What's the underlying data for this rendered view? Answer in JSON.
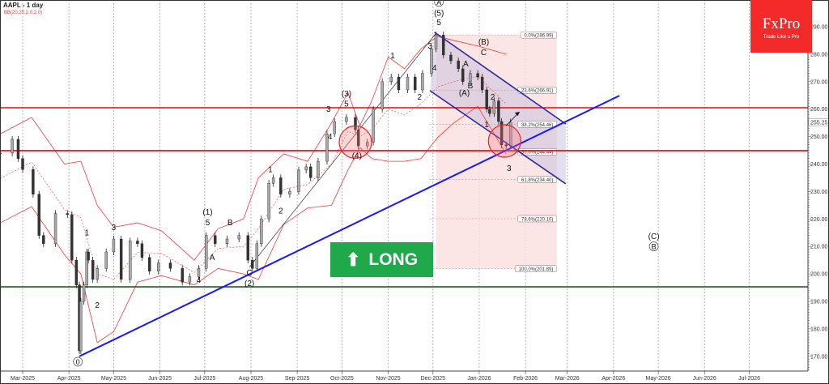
{
  "header": {
    "symbol_title": "AAPL - 1 day",
    "indicator": "BB(20,20,2.0,2.0)"
  },
  "logo": {
    "brand": "FxPro",
    "tagline": "Trade Like a Pro"
  },
  "signal": {
    "label": "LONG",
    "icon": "arrow-up-icon",
    "color": "#20a94a"
  },
  "chart_data": {
    "type": "candlestick",
    "title": "AAPL - 1 day",
    "y_ticks": [
      "290.00",
      "280.00",
      "270.00",
      "260.00",
      "250.00",
      "240.00",
      "230.00",
      "220.00",
      "210.00",
      "200.00",
      "190.00",
      "180.00",
      "170.00"
    ],
    "y_tick_values": [
      290,
      280,
      270,
      260,
      250,
      240,
      230,
      220,
      210,
      200,
      190,
      180,
      170
    ],
    "ylim": [
      164.6,
      299.7
    ],
    "x_ticks": [
      {
        "label": "Mar-2025",
        "date": "2025-03-01"
      },
      {
        "label": "Apr-2025",
        "date": "2025-04-01"
      },
      {
        "label": "May-2025",
        "date": "2025-05-01"
      },
      {
        "label": "Jun-2025",
        "date": "2025-06-01"
      },
      {
        "label": "Jul-2025",
        "date": "2025-07-01"
      },
      {
        "label": "Aug-2025",
        "date": "2025-08-01"
      },
      {
        "label": "Sep-2025",
        "date": "2025-09-01"
      },
      {
        "label": "Oct-2025",
        "date": "2025-10-01"
      },
      {
        "label": "Nov-2025",
        "date": "2025-11-01"
      },
      {
        "label": "Dec-2025",
        "date": "2025-12-01"
      },
      {
        "label": "Jan-2026",
        "date": "2026-01-01"
      },
      {
        "label": "Feb-2026",
        "date": "2026-02-01"
      },
      {
        "label": "Mar-2026",
        "date": "2026-03-01"
      },
      {
        "label": "Apr-2026",
        "date": "2026-04-01"
      },
      {
        "label": "May-2026",
        "date": "2026-05-01"
      },
      {
        "label": "Jun-2026",
        "date": "2026-06-01"
      },
      {
        "label": "Jul-2026",
        "date": "2026-07-01"
      }
    ],
    "last_price": "255.25",
    "closes": [
      [
        "2025-02-14",
        244
      ],
      [
        "2025-02-22",
        249
      ],
      [
        "2025-02-26",
        242
      ],
      [
        "2025-03-01",
        238
      ],
      [
        "2025-03-08",
        229
      ],
      [
        "2025-03-12",
        214
      ],
      [
        "2025-03-15",
        211
      ],
      [
        "2025-03-23",
        222
      ],
      [
        "2025-03-31",
        221.6
      ],
      [
        "2025-04-03",
        205
      ],
      [
        "2025-04-06",
        196
      ],
      [
        "2025-04-08",
        172
      ],
      [
        "2025-04-09",
        190
      ],
      [
        "2025-04-11",
        196
      ],
      [
        "2025-04-13",
        208
      ],
      [
        "2025-04-14",
        205
      ],
      [
        "2025-04-17",
        198
      ],
      [
        "2025-04-20",
        202
      ],
      [
        "2025-04-26",
        208
      ],
      [
        "2025-05-01",
        212.7
      ],
      [
        "2025-05-06",
        198
      ],
      [
        "2025-05-12",
        212
      ],
      [
        "2025-05-17",
        211
      ],
      [
        "2025-05-20",
        206
      ],
      [
        "2025-05-25",
        201
      ],
      [
        "2025-05-31",
        204
      ],
      [
        "2025-06-08",
        202
      ],
      [
        "2025-06-16",
        197
      ],
      [
        "2025-06-21",
        199
      ],
      [
        "2025-06-27",
        202
      ],
      [
        "2025-07-02",
        214
      ],
      [
        "2025-07-08",
        211
      ],
      [
        "2025-07-16",
        212.7
      ],
      [
        "2025-07-24",
        214
      ],
      [
        "2025-07-30",
        205
      ],
      [
        "2025-08-02",
        202
      ],
      [
        "2025-08-05",
        211
      ],
      [
        "2025-08-08",
        220
      ],
      [
        "2025-08-13",
        233
      ],
      [
        "2025-08-16",
        235
      ],
      [
        "2025-08-21",
        229
      ],
      [
        "2025-08-27",
        230
      ],
      [
        "2025-09-02",
        237.8
      ],
      [
        "2025-09-07",
        239
      ],
      [
        "2025-09-10",
        235
      ],
      [
        "2025-09-15",
        241
      ],
      [
        "2025-09-21",
        251
      ],
      [
        "2025-09-26",
        255.5
      ],
      [
        "2025-10-04",
        257
      ],
      [
        "2025-10-10",
        252.5
      ],
      [
        "2025-10-12",
        246.6
      ],
      [
        "2025-10-18",
        248
      ],
      [
        "2025-10-22",
        260
      ],
      [
        "2025-10-28",
        270
      ],
      [
        "2025-11-03",
        271.7
      ],
      [
        "2025-11-08",
        267
      ],
      [
        "2025-11-14",
        271.7
      ],
      [
        "2025-11-19",
        267
      ],
      [
        "2025-11-24",
        273
      ],
      [
        "2025-11-30",
        282
      ],
      [
        "2025-12-03",
        287
      ],
      [
        "2025-12-08",
        279.7
      ],
      [
        "2025-12-13",
        277.6
      ],
      [
        "2025-12-18",
        274.7
      ],
      [
        "2025-12-21",
        270
      ],
      [
        "2025-12-26",
        273
      ],
      [
        "2025-12-31",
        271.7
      ],
      [
        "2026-01-03",
        267
      ],
      [
        "2026-01-06",
        260
      ],
      [
        "2026-01-08",
        258.4
      ],
      [
        "2026-01-11",
        263
      ],
      [
        "2026-01-14",
        255.5
      ],
      [
        "2026-01-16",
        247
      ],
      [
        "2026-01-19",
        246.6
      ],
      [
        "2026-01-22",
        255.3
      ]
    ],
    "bollinger": {
      "dates": [
        "2025-02-14",
        "2025-03-07",
        "2025-03-29",
        "2025-04-09",
        "2025-04-20",
        "2025-05-01",
        "2025-05-17",
        "2025-06-02",
        "2025-06-24",
        "2025-07-10",
        "2025-07-27",
        "2025-08-06",
        "2025-08-23",
        "2025-09-08",
        "2025-09-24",
        "2025-10-05",
        "2025-10-13",
        "2025-10-21",
        "2025-11-01",
        "2025-11-12",
        "2025-11-23",
        "2025-12-04",
        "2025-12-15",
        "2025-12-31",
        "2026-01-19"
      ],
      "upper": [
        251,
        257,
        240,
        241,
        225,
        217,
        218.6,
        215.7,
        205,
        216.5,
        220,
        235,
        243.7,
        241,
        255,
        266,
        254,
        263,
        279,
        274.7,
        282,
        286.5,
        285,
        283,
        280
      ],
      "lower": [
        218.6,
        224.5,
        207,
        200,
        175,
        179,
        197,
        199.4,
        196,
        202,
        200,
        198,
        218,
        224,
        225,
        237.8,
        246,
        242,
        241,
        241,
        242,
        249.6,
        255,
        261,
        243.7
      ]
    },
    "horizontal_levels": [
      {
        "price": 260.5,
        "color": "#ff0000"
      },
      {
        "price": 244.9,
        "color": "#ff0000"
      },
      {
        "price": 195.3,
        "color": "#1a5e1a"
      }
    ],
    "trendline": {
      "from": [
        "2025-04-08",
        170
      ],
      "to": [
        "2026-04-05",
        264.9
      ],
      "color": "#1a1aff"
    },
    "wave_connector": {
      "from": [
        "2025-07-31",
        202.5
      ],
      "to": [
        "2025-12-03",
        287.6
      ]
    },
    "channel": {
      "upper": {
        "from": [
          "2025-12-02",
          288
        ],
        "to": [
          "2026-02-28",
          254.6
        ]
      },
      "lower": {
        "from": [
          "2025-11-29",
          266.7
        ],
        "to": [
          "2026-02-28",
          232.8
        ]
      },
      "color": "#2b2b9a"
    },
    "fibonacci": {
      "from_date": "2025-12-03",
      "to_date": "2026-02-22",
      "levels": [
        {
          "label": "0.0%(286.99)",
          "price": 286.99
        },
        {
          "label": "23.6%(266.91)",
          "price": 266.91
        },
        {
          "label": "38.2%(254.46)",
          "price": 254.46
        },
        {
          "label": "50.0%(244.44)",
          "price": 244.44
        },
        {
          "label": "61.8%(234.40)",
          "price": 234.4
        },
        {
          "label": "78.6%(220.10)",
          "price": 220.1
        },
        {
          "label": "100.0%(201.89)",
          "price": 201.89
        }
      ]
    },
    "highlight_circles": [
      [
        "2025-10-10",
        248
      ],
      [
        "2026-01-18",
        248.4
      ]
    ],
    "projection_arrow": {
      "from": [
        "2026-01-19",
        254
      ],
      "to": [
        "2026-01-28",
        259
      ]
    },
    "annotations": [
      {
        "text": "0",
        "date": "2025-04-07",
        "price": 167,
        "circled": true
      },
      {
        "text": "1",
        "date": "2025-04-13",
        "price": 214
      },
      {
        "text": "2",
        "date": "2025-04-20",
        "price": 187.6
      },
      {
        "text": "3",
        "date": "2025-05-01",
        "price": 216
      },
      {
        "text": "4",
        "date": "2025-06-27",
        "price": 196.8
      },
      {
        "text": "(1)",
        "date": "2025-07-03",
        "price": 221.6
      },
      {
        "text": "5",
        "date": "2025-07-03",
        "price": 217.7
      },
      {
        "text": "A",
        "date": "2025-07-06",
        "price": 205
      },
      {
        "text": "B",
        "date": "2025-07-18",
        "price": 217.7
      },
      {
        "text": "C",
        "date": "2025-07-31",
        "price": 199.4
      },
      {
        "text": "(2)",
        "date": "2025-07-31",
        "price": 195.6
      },
      {
        "text": "1",
        "date": "2025-08-14",
        "price": 237
      },
      {
        "text": "2",
        "date": "2025-08-21",
        "price": 222
      },
      {
        "text": "3",
        "date": "2025-09-22",
        "price": 259
      },
      {
        "text": "4",
        "date": "2025-09-23",
        "price": 249
      },
      {
        "text": "(3)",
        "date": "2025-10-04",
        "price": 264.7
      },
      {
        "text": "5",
        "date": "2025-10-04",
        "price": 261
      },
      {
        "text": "(4)",
        "date": "2025-10-11",
        "price": 242
      },
      {
        "text": "1",
        "date": "2025-11-04",
        "price": 278.5
      },
      {
        "text": "2",
        "date": "2025-11-22",
        "price": 263.5
      },
      {
        "text": "3",
        "date": "2025-11-29",
        "price": 282
      },
      {
        "text": "4",
        "date": "2025-12-02",
        "price": 274
      },
      {
        "text": "A",
        "date": "2025-12-05",
        "price": 298,
        "circled": true
      },
      {
        "text": "(5)",
        "date": "2025-12-05",
        "price": 294
      },
      {
        "text": "5",
        "date": "2025-12-05",
        "price": 290.6
      },
      {
        "text": "(B)",
        "date": "2026-01-04",
        "price": 283.5
      },
      {
        "text": "C",
        "date": "2026-01-04",
        "price": 279.7
      },
      {
        "text": "A",
        "date": "2025-12-23",
        "price": 275.5
      },
      {
        "text": "B",
        "date": "2025-12-26",
        "price": 267.6
      },
      {
        "text": "(A)",
        "date": "2025-12-22",
        "price": 265
      },
      {
        "text": "2",
        "date": "2026-01-10",
        "price": 263.5
      },
      {
        "text": "1",
        "date": "2026-01-06",
        "price": 253.4
      },
      {
        "text": "3",
        "date": "2026-01-21",
        "price": 237.5
      },
      {
        "text": "(C)",
        "date": "2026-04-28",
        "price": 212.7
      },
      {
        "text": "B",
        "date": "2026-04-28",
        "price": 209,
        "circled": true
      }
    ]
  }
}
